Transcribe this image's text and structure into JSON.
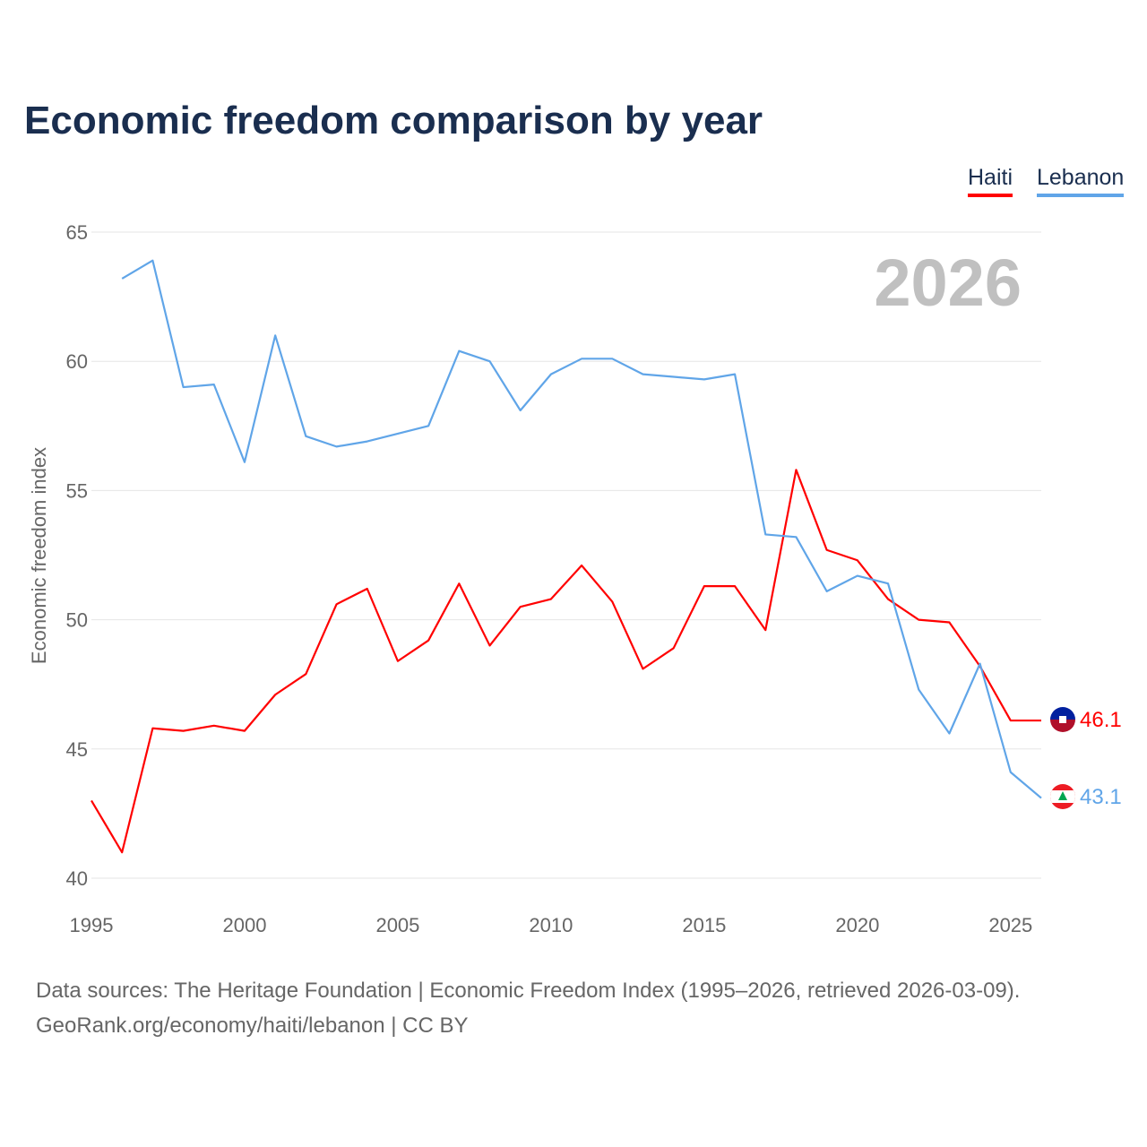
{
  "chart_data": {
    "type": "line",
    "title": "Economic freedom comparison by year",
    "ylabel": "Economic freedom index",
    "xlabel": "",
    "xlim": [
      1995,
      2026
    ],
    "ylim": [
      40,
      65
    ],
    "xticks": [
      "1995",
      "2000",
      "2005",
      "2010",
      "2015",
      "2020",
      "2025"
    ],
    "yticks": [
      "40",
      "45",
      "50",
      "55",
      "60",
      "65"
    ],
    "year_label": "2026",
    "legend_position": "top-right",
    "grid": true,
    "series": [
      {
        "name": "Haiti",
        "color": "#ff0000",
        "end_label": "46.1",
        "x": [
          1995,
          1996,
          1997,
          1998,
          1999,
          2000,
          2001,
          2002,
          2003,
          2004,
          2005,
          2006,
          2007,
          2008,
          2009,
          2010,
          2011,
          2012,
          2013,
          2014,
          2015,
          2016,
          2017,
          2018,
          2019,
          2020,
          2021,
          2022,
          2023,
          2024,
          2025,
          2026
        ],
        "values": [
          43.0,
          41.0,
          45.8,
          45.7,
          45.9,
          45.7,
          47.1,
          47.9,
          50.6,
          51.2,
          48.4,
          49.2,
          51.4,
          49.0,
          50.5,
          50.8,
          52.1,
          50.7,
          48.1,
          48.9,
          51.3,
          51.3,
          49.6,
          55.8,
          52.7,
          52.3,
          50.8,
          50.0,
          49.9,
          48.2,
          46.1,
          46.1
        ]
      },
      {
        "name": "Lebanon",
        "color": "#60a5e8",
        "end_label": "43.1",
        "x": [
          1996,
          1997,
          1998,
          1999,
          2000,
          2001,
          2002,
          2003,
          2004,
          2005,
          2006,
          2007,
          2008,
          2009,
          2010,
          2011,
          2012,
          2013,
          2014,
          2015,
          2016,
          2017,
          2018,
          2019,
          2020,
          2021,
          2022,
          2023,
          2024,
          2025,
          2026
        ],
        "values": [
          63.2,
          63.9,
          59.0,
          59.1,
          56.1,
          61.0,
          57.1,
          56.7,
          56.9,
          57.2,
          57.5,
          60.4,
          60.0,
          58.1,
          59.5,
          60.1,
          60.1,
          59.5,
          59.4,
          59.3,
          59.5,
          53.3,
          53.2,
          51.1,
          51.7,
          51.4,
          47.3,
          45.6,
          48.3,
          44.1,
          43.1
        ]
      }
    ]
  },
  "source": {
    "line1": "Data sources: The Heritage Foundation | Economic Freedom Index (1995–2026, retrieved 2026-03-09).",
    "line2": "GeoRank.org/economy/haiti/lebanon | CC BY"
  }
}
